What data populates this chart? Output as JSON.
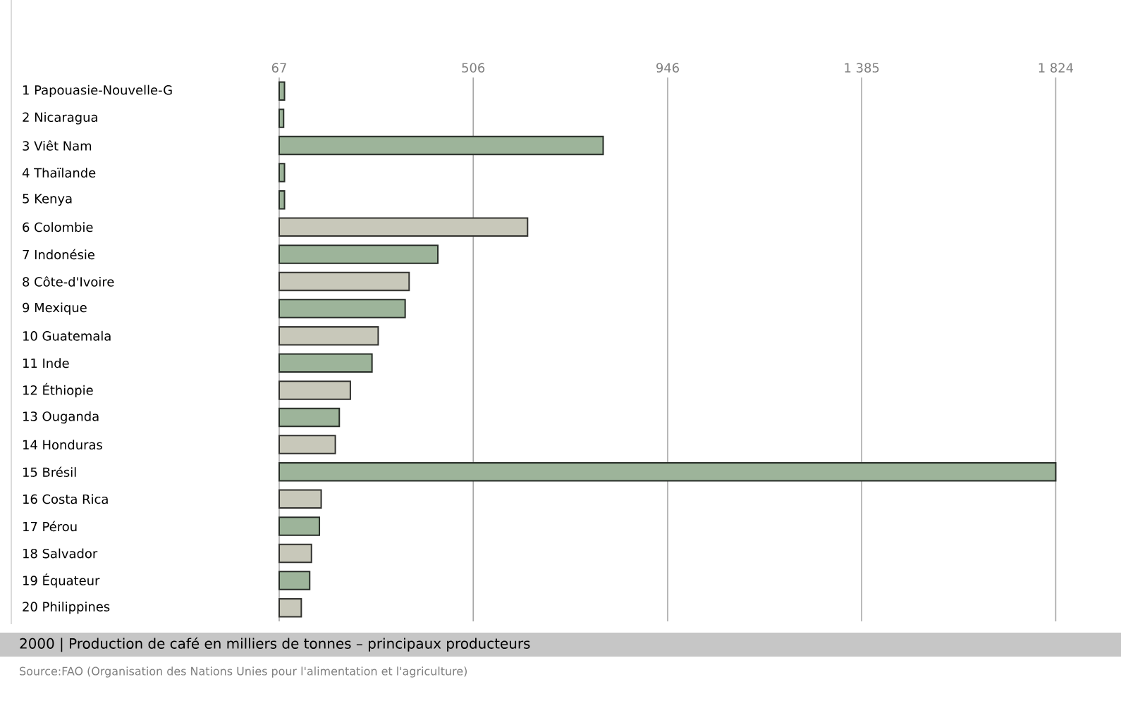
{
  "chart_data": {
    "type": "bar",
    "orientation": "horizontal",
    "title": "2000 | Production de café en milliers de tonnes – principaux producteurs",
    "annotations": [
      "Source:FAO (Organisation des Nations Unies pour l'alimentation et l'agriculture)"
    ],
    "categories": [
      "1 Papouasie-Nouvelle-G",
      "2 Nicaragua",
      "3 Viêt Nam",
      "4 Thaïlande",
      "5 Kenya",
      "6 Colombie",
      "7 Indonésie",
      "8 Côte-d'Ivoire",
      "9 Mexique",
      "10 Guatemala",
      "11 Inde",
      "12 Éthiopie",
      "13 Ouganda",
      "14 Honduras",
      "15 Brésil",
      "16 Costa Rica",
      "17 Pérou",
      "18 Salvador",
      "19 Équateur",
      "20 Philippines"
    ],
    "values": [
      79,
      77,
      800,
      79,
      79,
      629,
      426,
      361,
      352,
      291,
      277,
      228,
      203,
      194,
      1824,
      162,
      158,
      140,
      136,
      117
    ],
    "colors": [
      "#9db49a",
      "#9db49a",
      "#9db49a",
      "#9db49a",
      "#9db49a",
      "#c8c8ba",
      "#9db49a",
      "#c8c8ba",
      "#9db49a",
      "#c8c8ba",
      "#9db49a",
      "#c8c8ba",
      "#9db49a",
      "#c8c8ba",
      "#9db49a",
      "#c8c8ba",
      "#9db49a",
      "#c8c8ba",
      "#9db49a",
      "#c8c8ba"
    ],
    "xlim": [
      67,
      1824
    ],
    "xticks": [
      67,
      506,
      946,
      {
        "value": 1385,
        "label": "1 385"
      },
      {
        "value": 1824,
        "label": "1 824"
      }
    ],
    "grid": "x"
  }
}
